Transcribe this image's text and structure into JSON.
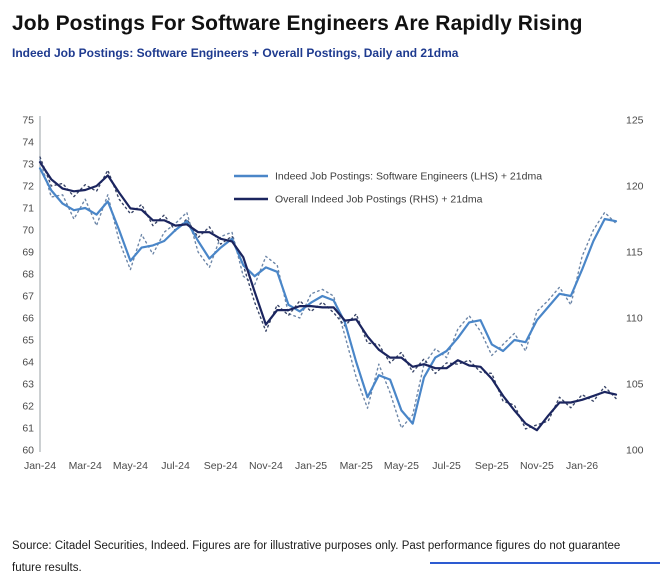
{
  "header": {
    "title": "Job Postings For Software Engineers Are Rapidly Rising",
    "subtitle": "Indeed Job Postings: Software Engineers + Overall Postings, Daily and 21dma"
  },
  "footer": {
    "source_line1": "Source: Citadel Securities, Indeed. Figures are for illustrative purposes only. Past performance figures do not guarantee",
    "source_line2": "future results."
  },
  "colors": {
    "title_text": "#111111",
    "subtitle_text": "#1e3a8f",
    "se_line": "#4a86c8",
    "se_daily": "#6e87a8",
    "overall_line": "#1b255f",
    "overall_daily": "#3a4668",
    "axis_text": "#4a4a4a",
    "accent_rule": "#2d5bd1"
  },
  "chart_data": {
    "type": "line",
    "title": "Indeed Job Postings: Software Engineers + Overall Postings, Daily and 21dma",
    "grid": false,
    "legend_position": "inside-top-center",
    "x_axis": {
      "labels": [
        "Jan-24",
        "Mar-24",
        "May-24",
        "Jul-24",
        "Sep-24",
        "Nov-24",
        "Jan-25",
        "Mar-25",
        "May-25",
        "Jul-25",
        "Sep-25",
        "Nov-25",
        "Jan-26"
      ],
      "label_positions": [
        0,
        2,
        4,
        6,
        8,
        10,
        12,
        14,
        16,
        18,
        20,
        22,
        24
      ],
      "x_min": 0,
      "x_max": 25.5
    },
    "y_left": {
      "min": 60,
      "max": 75,
      "ticks": [
        60,
        61,
        62,
        63,
        64,
        65,
        66,
        67,
        68,
        69,
        70,
        71,
        72,
        73,
        74,
        75
      ]
    },
    "y_right": {
      "min": 100,
      "max": 125,
      "ticks": [
        100,
        105,
        110,
        115,
        120,
        125
      ]
    },
    "legend": [
      {
        "label": "Indeed Job Postings: Software Engineers (LHS) + 21dma",
        "color_key": "se_line"
      },
      {
        "label": "Overall Indeed Job Postings (RHS) + 21dma",
        "color_key": "overall_line"
      }
    ],
    "x_start": 0,
    "x_step": 0.5,
    "series": [
      {
        "id": "se-daily",
        "name": "Software Engineers daily (LHS)",
        "axis": "left",
        "style": "dotted",
        "color_key": "se_daily",
        "values": [
          73.2,
          71.5,
          71.6,
          70.5,
          71.4,
          70.2,
          71.6,
          69.5,
          68.2,
          69.8,
          68.9,
          69.9,
          70.3,
          70.8,
          69.0,
          68.3,
          69.7,
          69.9,
          67.9,
          67.5,
          68.8,
          68.4,
          66.2,
          66.0,
          67.1,
          67.3,
          67.0,
          65.2,
          63.3,
          61.9,
          63.9,
          62.6,
          61.0,
          61.6,
          63.9,
          64.6,
          64.2,
          65.5,
          66.1,
          65.4,
          64.3,
          64.8,
          65.3,
          64.5,
          66.3,
          66.8,
          67.4,
          66.6,
          68.8,
          70.0,
          70.8,
          70.3
        ]
      },
      {
        "id": "overall-daily",
        "name": "Overall postings daily (RHS)",
        "axis": "right",
        "style": "dotted",
        "color_key": "overall_daily",
        "values": [
          122.2,
          120.0,
          120.2,
          119.2,
          120.1,
          119.6,
          121.2,
          119.0,
          117.9,
          118.6,
          117.0,
          117.8,
          116.6,
          117.5,
          116.1,
          116.9,
          115.6,
          116.2,
          114.0,
          111.2,
          109.0,
          111.0,
          110.2,
          111.3,
          110.5,
          111.2,
          110.4,
          109.4,
          110.3,
          108.1,
          108.0,
          106.6,
          107.4,
          105.9,
          106.9,
          105.8,
          106.6,
          106.5,
          106.8,
          105.9,
          105.8,
          103.7,
          103.4,
          101.6,
          101.9,
          102.2,
          104.0,
          103.2,
          104.2,
          103.7,
          104.8,
          103.9
        ]
      },
      {
        "id": "se-21dma",
        "name": "Indeed Job Postings: Software Engineers (LHS) + 21dma",
        "axis": "left",
        "style": "solid",
        "color_key": "se_line",
        "values": [
          72.8,
          71.8,
          71.2,
          70.9,
          71.0,
          70.7,
          71.3,
          70.0,
          68.6,
          69.2,
          69.3,
          69.5,
          70.0,
          70.4,
          69.5,
          68.7,
          69.2,
          69.6,
          68.4,
          67.9,
          68.3,
          68.1,
          66.6,
          66.3,
          66.7,
          67.0,
          66.8,
          65.8,
          64.0,
          62.4,
          63.4,
          63.2,
          61.8,
          61.2,
          63.3,
          64.2,
          64.5,
          65.1,
          65.8,
          65.9,
          64.8,
          64.5,
          65.0,
          64.9,
          65.9,
          66.5,
          67.1,
          67.0,
          68.2,
          69.5,
          70.5,
          70.4
        ]
      },
      {
        "id": "overall-21dma",
        "name": "Overall Indeed Job Postings (RHS) + 21dma",
        "axis": "right",
        "style": "solid",
        "color_key": "overall_line",
        "values": [
          121.8,
          120.5,
          119.8,
          119.6,
          119.7,
          120.0,
          120.8,
          119.5,
          118.3,
          118.2,
          117.4,
          117.4,
          117.0,
          117.1,
          116.5,
          116.5,
          116.0,
          115.8,
          114.6,
          112.0,
          109.5,
          110.6,
          110.6,
          110.9,
          110.9,
          110.8,
          110.8,
          109.8,
          109.9,
          108.6,
          107.6,
          107.0,
          107.0,
          106.3,
          106.5,
          106.2,
          106.2,
          106.8,
          106.4,
          106.3,
          105.4,
          104.1,
          103.0,
          102.0,
          101.5,
          102.6,
          103.6,
          103.6,
          103.8,
          104.1,
          104.4,
          104.2
        ]
      }
    ]
  }
}
